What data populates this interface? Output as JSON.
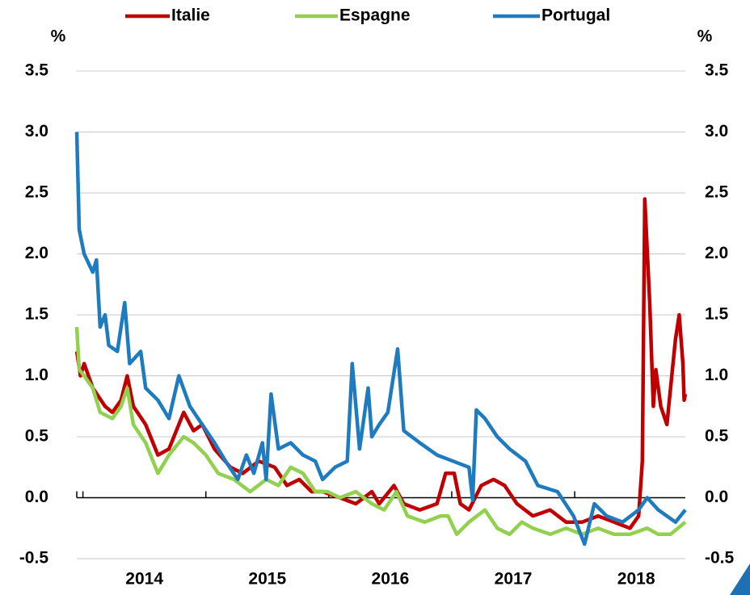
{
  "chart_data": {
    "type": "line",
    "y_label": "%",
    "y2_label": "%",
    "xlim": [
      2013.95,
      2018.9
    ],
    "xticks": [
      2014,
      2015,
      2016,
      2017,
      2018
    ],
    "ylim": [
      -0.5,
      3.5
    ],
    "yticks": [
      -0.5,
      {
        "value": 0,
        "label": "0.0"
      },
      0.5,
      {
        "value": 1,
        "label": "1.0"
      },
      1.5,
      {
        "value": 2,
        "label": "2.0"
      },
      2.5,
      {
        "value": 3,
        "label": "3.0"
      },
      3.5
    ],
    "y2lim": [
      -0.5,
      3.5
    ],
    "y2ticks": [
      -0.5,
      {
        "value": 0,
        "label": "0.0"
      },
      0.5,
      {
        "value": 1,
        "label": "1.0"
      },
      1.5,
      {
        "value": 2,
        "label": "2.0"
      },
      2.5,
      {
        "value": 3,
        "label": "3.0"
      },
      3.5
    ],
    "grid": true,
    "legend": "top",
    "series": [
      {
        "name": "Italie",
        "color": "#c00000",
        "x": [
          2013.95,
          2013.98,
          2014.01,
          2014.08,
          2014.18,
          2014.24,
          2014.31,
          2014.36,
          2014.41,
          2014.51,
          2014.61,
          2014.7,
          2014.82,
          2014.9,
          2014.97,
          2015.07,
          2015.2,
          2015.3,
          2015.43,
          2015.56,
          2015.66,
          2015.76,
          2015.86,
          2015.95,
          2016.09,
          2016.22,
          2016.35,
          2016.41,
          2016.53,
          2016.61,
          2016.74,
          2016.88,
          2016.95,
          2017.02,
          2017.07,
          2017.14,
          2017.24,
          2017.34,
          2017.43,
          2017.53,
          2017.66,
          2017.8,
          2017.93,
          2018.06,
          2018.19,
          2018.32,
          2018.45,
          2018.52,
          2018.55,
          2018.57,
          2018.61,
          2018.64,
          2018.66,
          2018.7,
          2018.75,
          2018.78,
          2018.82,
          2018.85,
          2018.88,
          2018.89,
          2018.9
        ],
        "values": [
          1.2,
          1.0,
          1.1,
          0.9,
          0.75,
          0.7,
          0.8,
          1.0,
          0.75,
          0.6,
          0.35,
          0.4,
          0.7,
          0.55,
          0.6,
          0.4,
          0.25,
          0.2,
          0.3,
          0.25,
          0.1,
          0.15,
          0.05,
          0.05,
          0.0,
          -0.05,
          0.05,
          -0.05,
          0.1,
          -0.05,
          -0.1,
          -0.05,
          0.2,
          0.2,
          -0.05,
          -0.1,
          0.1,
          0.15,
          0.1,
          -0.05,
          -0.15,
          -0.1,
          -0.2,
          -0.2,
          -0.15,
          -0.2,
          -0.25,
          -0.15,
          0.3,
          2.45,
          1.6,
          0.75,
          1.05,
          0.75,
          0.6,
          0.9,
          1.3,
          1.5,
          1.1,
          0.8,
          0.85
        ]
      },
      {
        "name": "Espagne",
        "color": "#92d050",
        "x": [
          2013.95,
          2013.97,
          2014.01,
          2014.08,
          2014.14,
          2014.24,
          2014.31,
          2014.36,
          2014.41,
          2014.51,
          2014.61,
          2014.7,
          2014.82,
          2014.9,
          2015.0,
          2015.1,
          2015.23,
          2015.36,
          2015.49,
          2015.59,
          2015.69,
          2015.79,
          2015.89,
          2015.99,
          2016.09,
          2016.22,
          2016.35,
          2016.45,
          2016.55,
          2016.64,
          2016.78,
          2016.91,
          2016.97,
          2017.04,
          2017.14,
          2017.27,
          2017.37,
          2017.47,
          2017.57,
          2017.66,
          2017.8,
          2017.93,
          2018.06,
          2018.19,
          2018.32,
          2018.45,
          2018.59,
          2018.68,
          2018.78,
          2018.9
        ],
        "values": [
          1.4,
          1.05,
          1.0,
          0.9,
          0.7,
          0.65,
          0.75,
          0.9,
          0.6,
          0.45,
          0.2,
          0.35,
          0.5,
          0.45,
          0.35,
          0.2,
          0.15,
          0.05,
          0.15,
          0.1,
          0.25,
          0.2,
          0.05,
          0.05,
          0.0,
          0.05,
          -0.05,
          -0.1,
          0.05,
          -0.15,
          -0.2,
          -0.15,
          -0.15,
          -0.3,
          -0.2,
          -0.1,
          -0.25,
          -0.3,
          -0.2,
          -0.25,
          -0.3,
          -0.25,
          -0.3,
          -0.25,
          -0.3,
          -0.3,
          -0.25,
          -0.3,
          -0.3,
          -0.2
        ]
      },
      {
        "name": "Portugal",
        "color": "#1f7bbf",
        "x": [
          2013.95,
          2013.97,
          2014.01,
          2014.08,
          2014.11,
          2014.14,
          2014.18,
          2014.21,
          2014.28,
          2014.34,
          2014.38,
          2014.47,
          2014.51,
          2014.61,
          2014.7,
          2014.78,
          2014.87,
          2014.97,
          2015.07,
          2015.16,
          2015.26,
          2015.33,
          2015.39,
          2015.46,
          2015.49,
          2015.53,
          2015.59,
          2015.69,
          2015.79,
          2015.89,
          2015.95,
          2016.05,
          2016.15,
          2016.19,
          2016.25,
          2016.32,
          2016.35,
          2016.41,
          2016.48,
          2016.56,
          2016.61,
          2016.74,
          2016.88,
          2017.01,
          2017.14,
          2017.17,
          2017.2,
          2017.27,
          2017.37,
          2017.47,
          2017.6,
          2017.7,
          2017.86,
          2017.99,
          2018.08,
          2018.16,
          2018.26,
          2018.39,
          2018.52,
          2018.59,
          2018.68,
          2018.82,
          2018.9
        ],
        "values": [
          3.0,
          2.2,
          2.0,
          1.85,
          1.95,
          1.4,
          1.5,
          1.25,
          1.2,
          1.6,
          1.1,
          1.2,
          0.9,
          0.8,
          0.65,
          1.0,
          0.75,
          0.6,
          0.45,
          0.3,
          0.15,
          0.35,
          0.2,
          0.45,
          0.15,
          0.85,
          0.4,
          0.45,
          0.35,
          0.3,
          0.15,
          0.25,
          0.3,
          1.1,
          0.4,
          0.9,
          0.5,
          0.6,
          0.7,
          1.22,
          0.55,
          0.45,
          0.35,
          0.3,
          0.25,
          -0.02,
          0.72,
          0.65,
          0.5,
          0.4,
          0.3,
          0.1,
          0.05,
          -0.15,
          -0.38,
          -0.05,
          -0.15,
          -0.2,
          -0.1,
          0.0,
          -0.1,
          -0.2,
          -0.1
        ]
      }
    ]
  }
}
